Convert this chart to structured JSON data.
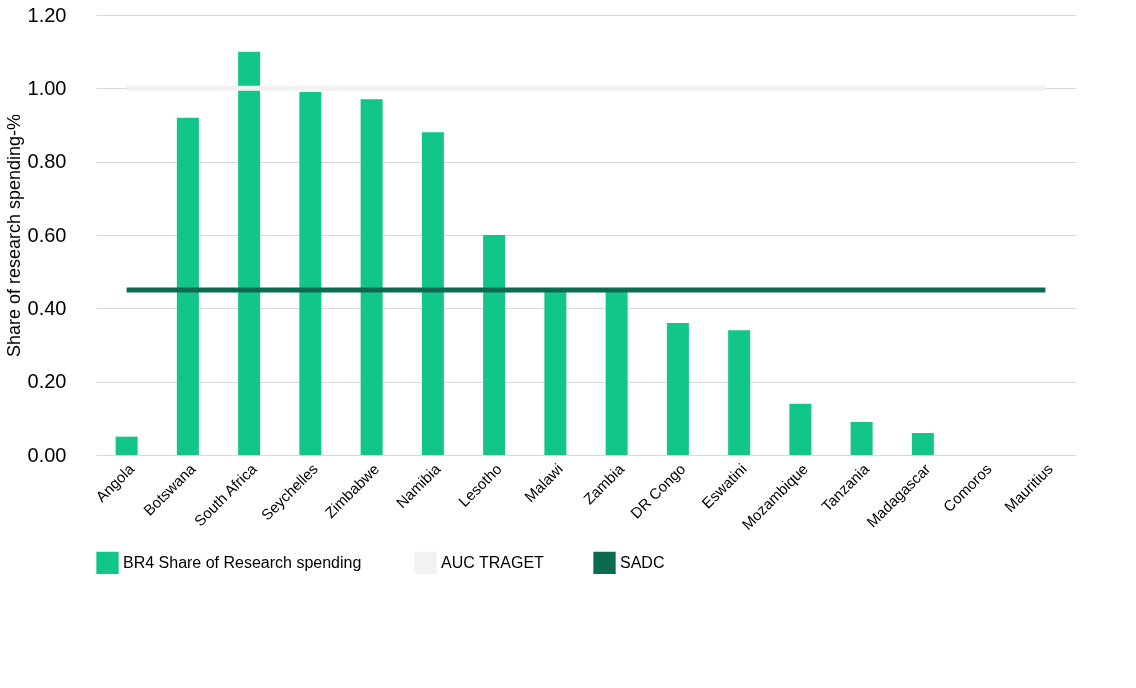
{
  "chart_data": {
    "type": "bar",
    "ylabel": "Share of research spending-%",
    "categories": [
      "Angola",
      "Botswana",
      "South Africa",
      "Seychelles",
      "Zimbabwe",
      "Namibia",
      "Lesotho",
      "Malawi",
      "Zambia",
      "DR Congo",
      "Eswatini",
      "Mozambique",
      "Tanzania",
      "Madagascar",
      "Comoros",
      "Mauritius"
    ],
    "series": [
      {
        "name": "BR4  Share of Research spending",
        "color": "#12c68a",
        "values": [
          0.05,
          0.92,
          1.1,
          0.99,
          0.97,
          0.88,
          0.6,
          0.45,
          0.45,
          0.36,
          0.34,
          0.14,
          0.09,
          0.06,
          0,
          0
        ]
      },
      {
        "name": "AUC TRAGET",
        "type": "line",
        "color": "#f2f2f2",
        "values": [
          1.0,
          1.0,
          1.0,
          1.0,
          1.0,
          1.0,
          1.0,
          1.0,
          1.0,
          1.0,
          1.0,
          1.0,
          1.0,
          1.0,
          1.0,
          1.0
        ]
      },
      {
        "name": "SADC",
        "type": "line",
        "color": "#0b6b50",
        "values": [
          0.45,
          0.45,
          0.45,
          0.45,
          0.45,
          0.45,
          0.45,
          0.45,
          0.45,
          0.45,
          0.45,
          0.45,
          0.45,
          0.45,
          0.45,
          0.45
        ]
      }
    ],
    "ylim": [
      0,
      1.2
    ],
    "yticks": [
      {
        "value": 0,
        "label": "0.00"
      },
      {
        "value": 0.2,
        "label": "0.20"
      },
      {
        "value": 0.4,
        "label": "0.40"
      },
      {
        "value": 0.6,
        "label": "0.60"
      },
      {
        "value": 0.8,
        "label": "0.80"
      },
      {
        "value": 1.0,
        "label": "1.00"
      },
      {
        "value": 1.2,
        "label": "1.20"
      }
    ],
    "grid": "y",
    "legend": "bottom"
  }
}
